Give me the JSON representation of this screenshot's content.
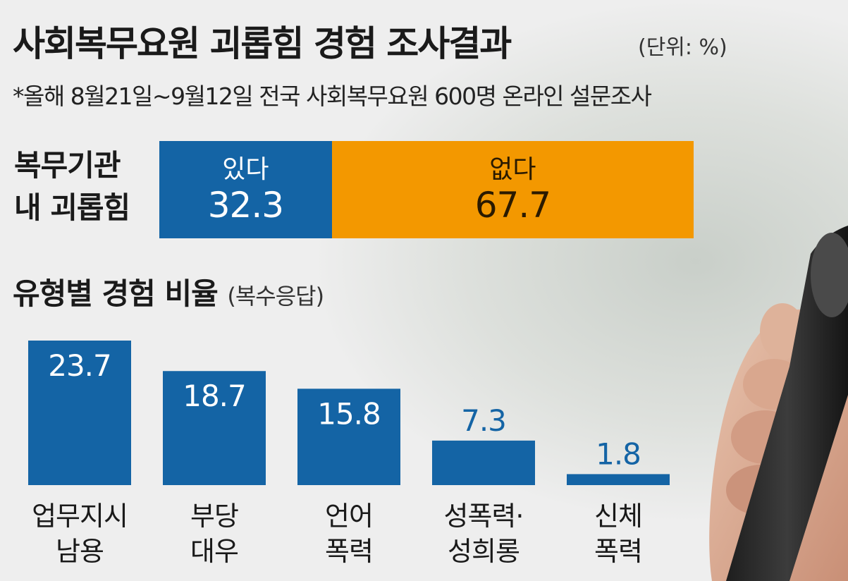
{
  "title": "사회복무요원 괴롭힘 경험 조사결과",
  "unit": "(단위: %)",
  "subtitle": "*올해 8월21일~9월12일 전국 사회복무요원 600명 온라인 설문조사",
  "stacked": {
    "label_lines": [
      "복무기관",
      "내 괴롭힘"
    ],
    "segments": [
      {
        "label": "있다",
        "value": "32.3",
        "color": "#1464a5"
      },
      {
        "label": "없다",
        "value": "67.7",
        "color": "#f39800"
      }
    ]
  },
  "section": {
    "title": "유형별 경험 비율",
    "note": "(복수응답)"
  },
  "chart_data": [
    {
      "type": "bar",
      "orientation": "horizontal-stacked",
      "categories": [
        "복무기관 내 괴롭힘"
      ],
      "series": [
        {
          "name": "있다",
          "values": [
            32.3
          ]
        },
        {
          "name": "없다",
          "values": [
            67.7
          ]
        }
      ],
      "ylim": [
        0,
        100
      ]
    },
    {
      "type": "bar",
      "title": "유형별 경험 비율",
      "categories": [
        [
          "업무지시",
          "남용"
        ],
        [
          "부당",
          "대우"
        ],
        [
          "언어",
          "폭력"
        ],
        [
          "성폭력·",
          "성희롱"
        ],
        [
          "신체",
          "폭력"
        ]
      ],
      "values": [
        23.7,
        18.7,
        15.8,
        7.3,
        1.8
      ],
      "value_labels": [
        "23.7",
        "18.7",
        "15.8",
        "7.3",
        "1.8"
      ],
      "ylim": [
        0,
        23.7
      ],
      "bar_color": "#1464a5",
      "grid": false
    }
  ]
}
